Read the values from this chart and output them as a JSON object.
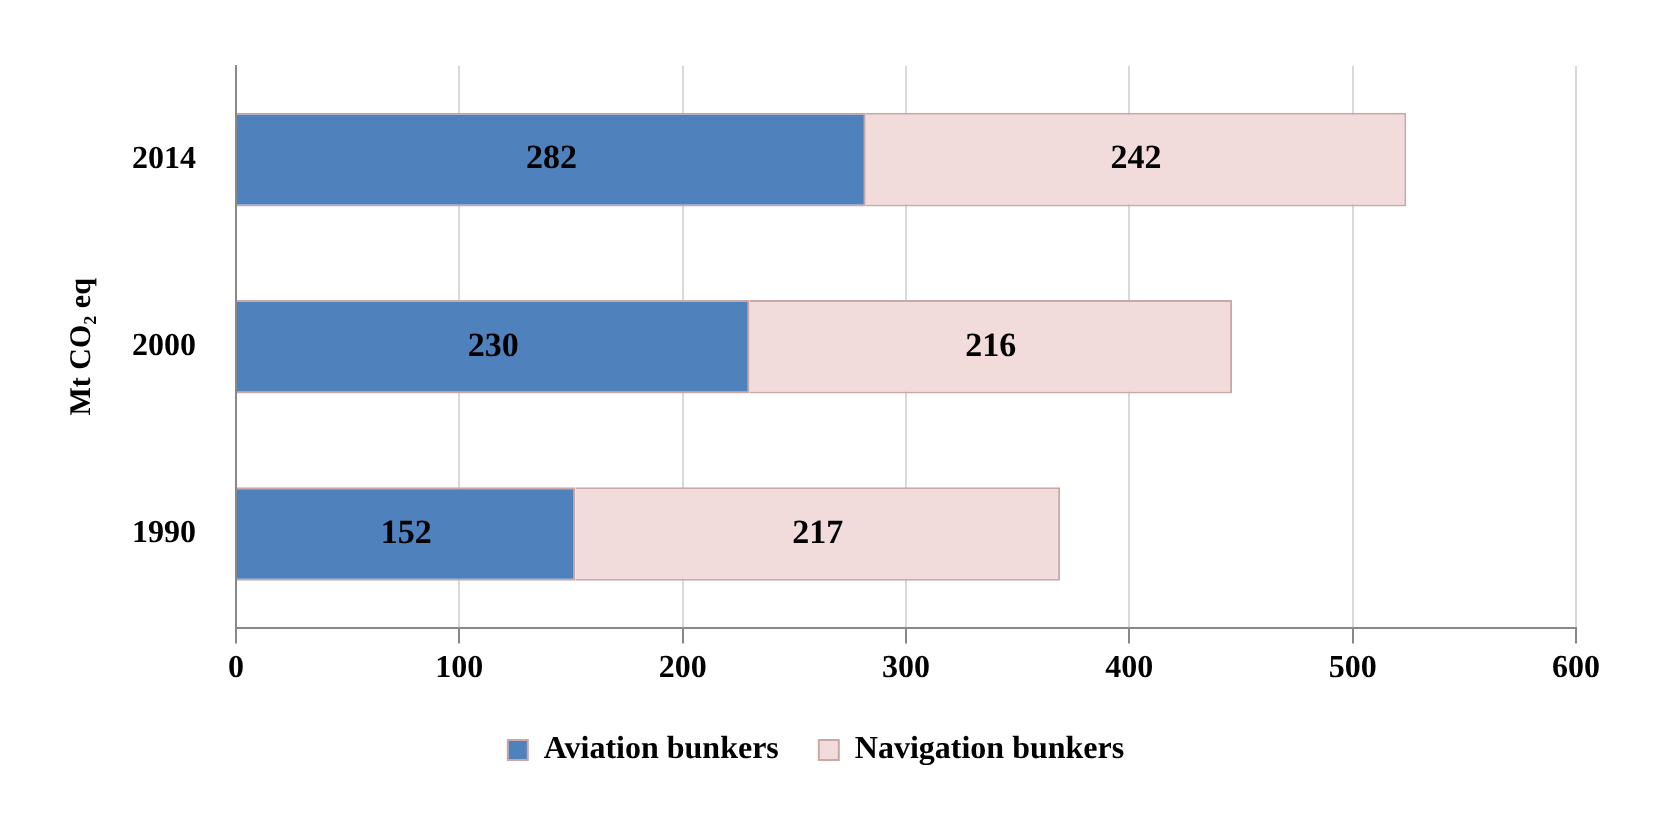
{
  "chart_data": {
    "type": "bar",
    "orientation": "horizontal",
    "stacked": true,
    "ylabel": "Mt CO₂ eq",
    "categories": [
      "2014",
      "2000",
      "1990"
    ],
    "series": [
      {
        "name": "Aviation bunkers",
        "color": "#4f81bd",
        "values": [
          282,
          230,
          152
        ]
      },
      {
        "name": "Navigation bunkers",
        "color": "#f2dcdb",
        "values": [
          242,
          216,
          217
        ]
      }
    ],
    "xlim": [
      0,
      600
    ],
    "xticks": [
      0,
      100,
      200,
      300,
      400,
      500,
      600
    ],
    "grid": "x",
    "legend": "bottom",
    "data_labels": true
  }
}
